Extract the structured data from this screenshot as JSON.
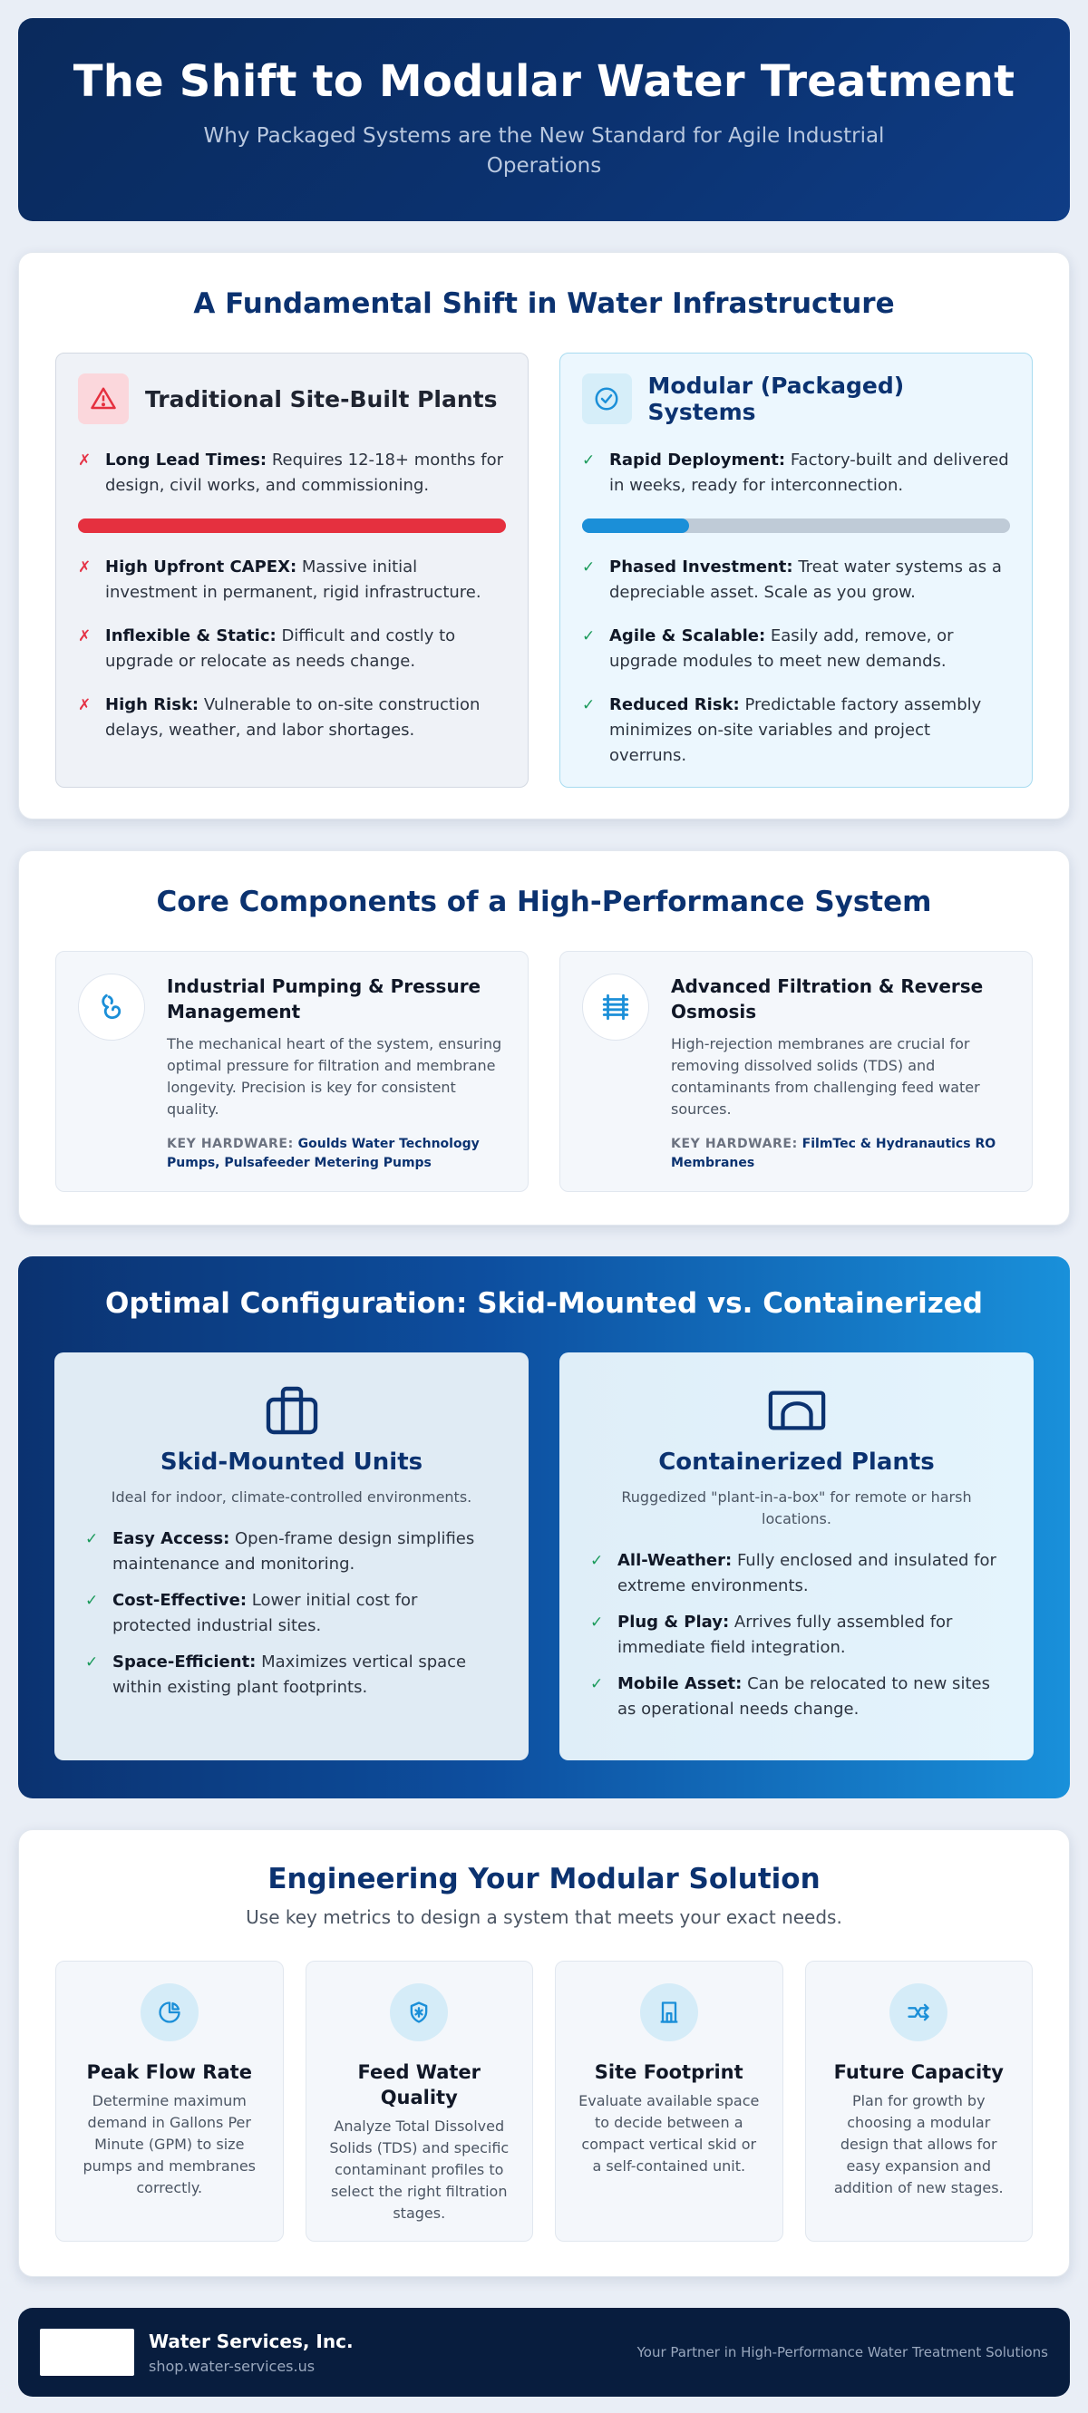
{
  "hero": {
    "title": "The Shift to Modular Water Treatment",
    "subtitle": "Why Packaged Systems are the New Standard for Agile Industrial Operations"
  },
  "shift": {
    "title": "A Fundamental Shift in Water Infrastructure",
    "traditional": {
      "heading": "Traditional Site-Built Plants",
      "icon": "warning-icon",
      "timeline_fill": 1.0,
      "items": [
        {
          "bold": "Long Lead Times:",
          "text": "Requires 12-18+ months for design, civil works, and commissioning."
        },
        {
          "bold": "High Upfront CAPEX:",
          "text": "Massive initial investment in permanent, rigid infrastructure."
        },
        {
          "bold": "Inflexible & Static:",
          "text": "Difficult and costly to upgrade or relocate as needs change."
        },
        {
          "bold": "High Risk:",
          "text": "Vulnerable to on-site construction delays, weather, and labor shortages."
        }
      ]
    },
    "modular": {
      "heading": "Modular (Packaged) Systems",
      "icon": "check-circle-icon",
      "timeline_fill": 0.25,
      "items": [
        {
          "bold": "Rapid Deployment:",
          "text": "Factory-built and delivered in weeks, ready for interconnection."
        },
        {
          "bold": "Phased Investment:",
          "text": "Treat water systems as a depreciable asset. Scale as you grow."
        },
        {
          "bold": "Agile & Scalable:",
          "text": "Easily add, remove, or upgrade modules to meet new demands."
        },
        {
          "bold": "Reduced Risk:",
          "text": "Predictable factory assembly minimizes on-site variables and project overruns."
        }
      ]
    },
    "colors": {
      "traditional_bar": "#e5303f",
      "modular_bar": "#1b8fd8"
    }
  },
  "core": {
    "title": "Core Components of a High-Performance System",
    "components": [
      {
        "icon": "pump-icon",
        "heading": "Industrial Pumping & Pressure Management",
        "desc": "The mechanical heart of the system, ensuring optimal pressure for filtration and membrane longevity. Precision is key for consistent quality.",
        "hw_label": "KEY HARDWARE:",
        "hw_value": "Goulds Water Technology Pumps, Pulsafeeder Metering Pumps"
      },
      {
        "icon": "filter-icon",
        "heading": "Advanced Filtration & Reverse Osmosis",
        "desc": "High-rejection membranes are crucial for removing dissolved solids (TDS) and contaminants from challenging feed water sources.",
        "hw_label": "KEY HARDWARE:",
        "hw_value": "FilmTec & Hydranautics RO Membranes"
      }
    ]
  },
  "config": {
    "title": "Optimal Configuration: Skid-Mounted vs. Containerized",
    "skid": {
      "icon": "briefcase-icon",
      "heading": "Skid-Mounted Units",
      "sub": "Ideal for indoor, climate-controlled environments.",
      "items": [
        {
          "bold": "Easy Access:",
          "text": "Open-frame design simplifies maintenance and monitoring."
        },
        {
          "bold": "Cost-Effective:",
          "text": "Lower initial cost for protected industrial sites."
        },
        {
          "bold": "Space-Efficient:",
          "text": "Maximizes vertical space within existing plant footprints."
        }
      ]
    },
    "container": {
      "icon": "container-icon",
      "heading": "Containerized Plants",
      "sub": "Ruggedized \"plant-in-a-box\" for remote or harsh locations.",
      "items": [
        {
          "bold": "All-Weather:",
          "text": "Fully enclosed and insulated for extreme environments."
        },
        {
          "bold": "Plug & Play:",
          "text": "Arrives fully assembled for immediate field integration."
        },
        {
          "bold": "Mobile Asset:",
          "text": "Can be relocated to new sites as operational needs change."
        }
      ]
    }
  },
  "engineering": {
    "title": "Engineering Your Modular Solution",
    "lead": "Use key metrics to design a system that meets your exact needs.",
    "metrics": [
      {
        "icon": "pie-chart-icon",
        "heading": "Peak Flow Rate",
        "text": "Determine maximum demand in Gallons Per Minute (GPM) to size pumps and membranes correctly."
      },
      {
        "icon": "shield-icon",
        "heading": "Feed Water Quality",
        "text": "Analyze Total Dissolved Solids (TDS) and specific contaminant profiles to select the right filtration stages."
      },
      {
        "icon": "building-icon",
        "heading": "Site Footprint",
        "text": "Evaluate available space to decide between a compact vertical skid or a self-contained unit."
      },
      {
        "icon": "arrows-icon",
        "heading": "Future Capacity",
        "text": "Plan for growth by choosing a modular design that allows for easy expansion and addition of new stages."
      }
    ]
  },
  "footer": {
    "company": "Water Services, Inc.",
    "url": "shop.water-services.us",
    "tagline": "Your Partner in High-Performance Water Treatment Solutions"
  }
}
